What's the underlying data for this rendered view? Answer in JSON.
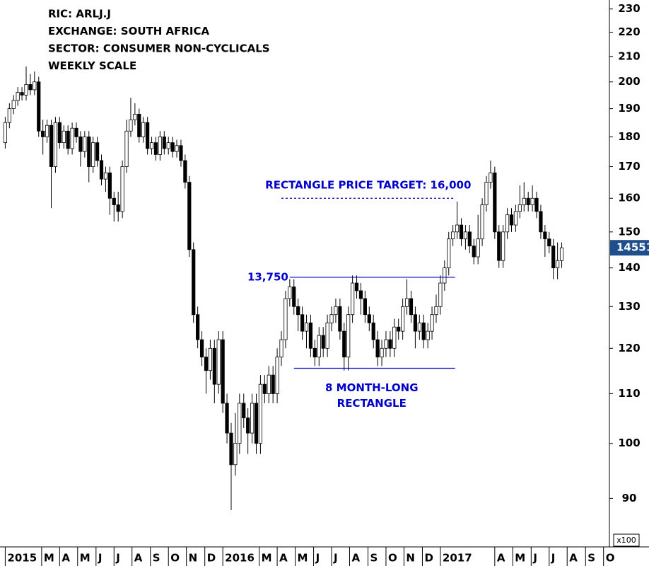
{
  "chart_data": {
    "type": "candlestick",
    "title_lines": [
      "RIC: ARLJ.J",
      "EXCHANGE: SOUTH AFRICA",
      "SECTOR: CONSUMER NON-CYCLICALS",
      "WEEKLY SCALE"
    ],
    "log_scale": true,
    "up_color": "#ffffff",
    "down_color": "#000000",
    "annotation_color": "#0000cc",
    "ylim": [
      82,
      234
    ],
    "yticks": [
      90,
      100,
      110,
      120,
      130,
      140,
      150,
      160,
      170,
      180,
      190,
      200,
      210,
      220,
      230
    ],
    "xlim": [
      -1.25,
      144.4
    ],
    "xticks": [
      {
        "value": 0,
        "label": "2015"
      },
      {
        "value": 8.7,
        "label": "M"
      },
      {
        "value": 13,
        "label": "A"
      },
      {
        "value": 17.3,
        "label": "M"
      },
      {
        "value": 21.7,
        "label": "J"
      },
      {
        "value": 26,
        "label": "J"
      },
      {
        "value": 30.3,
        "label": "A"
      },
      {
        "value": 34.7,
        "label": "S"
      },
      {
        "value": 39,
        "label": "O"
      },
      {
        "value": 43.3,
        "label": "N"
      },
      {
        "value": 47.7,
        "label": "D"
      },
      {
        "value": 52,
        "label": "2016"
      },
      {
        "value": 60.7,
        "label": "M"
      },
      {
        "value": 65,
        "label": "A"
      },
      {
        "value": 69.3,
        "label": "M"
      },
      {
        "value": 73.7,
        "label": "J"
      },
      {
        "value": 78,
        "label": "J"
      },
      {
        "value": 82.3,
        "label": "A"
      },
      {
        "value": 86.7,
        "label": "S"
      },
      {
        "value": 91,
        "label": "O"
      },
      {
        "value": 95.3,
        "label": "N"
      },
      {
        "value": 99.7,
        "label": "D"
      },
      {
        "value": 104,
        "label": "2017"
      },
      {
        "value": 117,
        "label": "A"
      },
      {
        "value": 121.3,
        "label": "M"
      },
      {
        "value": 125.7,
        "label": "J"
      },
      {
        "value": 130,
        "label": "J"
      },
      {
        "value": 134.3,
        "label": "A"
      },
      {
        "value": 138.7,
        "label": "S"
      },
      {
        "value": 143,
        "label": "O"
      }
    ],
    "open": [
      178,
      185,
      190,
      193,
      196,
      195,
      199,
      197,
      200,
      182,
      180,
      184,
      170,
      185,
      178,
      182,
      176,
      183,
      180,
      175,
      180,
      170,
      178,
      172,
      166,
      168,
      160,
      158,
      156,
      170,
      182,
      186,
      188,
      180,
      185,
      176,
      178,
      174,
      180,
      176,
      178,
      175,
      177,
      172,
      165,
      145,
      128,
      122,
      118,
      115,
      120,
      112,
      122,
      108,
      102,
      96,
      100,
      108,
      105,
      102,
      108,
      100,
      112,
      110,
      114,
      110,
      118,
      122,
      132,
      135,
      130,
      128,
      124,
      126,
      120,
      118,
      123,
      120,
      126,
      128,
      130,
      124,
      118,
      128,
      136,
      134,
      132,
      128,
      126,
      122,
      118,
      120,
      122,
      120,
      125,
      124,
      130,
      132,
      128,
      124,
      126,
      122,
      124,
      128,
      130,
      136,
      140,
      148,
      150,
      152,
      148,
      150,
      146,
      143,
      148,
      158,
      165,
      168,
      150,
      142,
      150,
      155,
      152,
      156,
      158,
      160,
      158,
      160,
      156,
      150,
      148,
      146,
      140,
      142
    ],
    "high": [
      187,
      192,
      195,
      198,
      198,
      206,
      203,
      204,
      202,
      186,
      186,
      186,
      187,
      187,
      184,
      184,
      185,
      185,
      182,
      182,
      182,
      180,
      180,
      174,
      170,
      170,
      162,
      162,
      172,
      186,
      194,
      192,
      190,
      187,
      187,
      180,
      180,
      182,
      182,
      180,
      180,
      179,
      179,
      174,
      167,
      147,
      130,
      124,
      120,
      122,
      122,
      124,
      124,
      110,
      104,
      106,
      110,
      110,
      107,
      110,
      110,
      114,
      114,
      116,
      116,
      120,
      124,
      134,
      137,
      137,
      132,
      130,
      128,
      128,
      122,
      125,
      125,
      128,
      130,
      132,
      132,
      126,
      130,
      138,
      138,
      136,
      134,
      130,
      128,
      124,
      122,
      124,
      124,
      127,
      127,
      132,
      137,
      134,
      130,
      128,
      128,
      126,
      130,
      133,
      138,
      142,
      150,
      152,
      159,
      154,
      152,
      152,
      148,
      155,
      160,
      167,
      172,
      170,
      152,
      152,
      157,
      157,
      158,
      164,
      165,
      162,
      164,
      162,
      158,
      152,
      150,
      148,
      147,
      147
    ],
    "low": [
      176,
      183,
      188,
      191,
      193,
      193,
      195,
      195,
      180,
      174,
      178,
      157,
      168,
      176,
      176,
      174,
      174,
      178,
      170,
      173,
      165,
      168,
      170,
      164,
      162,
      155,
      153,
      153,
      154,
      168,
      180,
      184,
      178,
      178,
      174,
      174,
      172,
      172,
      174,
      174,
      173,
      173,
      170,
      163,
      143,
      126,
      120,
      116,
      110,
      113,
      108,
      110,
      106,
      100,
      88,
      94,
      98,
      103,
      98,
      100,
      98,
      98,
      108,
      108,
      108,
      108,
      116,
      120,
      130,
      128,
      124,
      122,
      120,
      118,
      116,
      116,
      118,
      118,
      124,
      126,
      122,
      115,
      115,
      126,
      132,
      128,
      126,
      124,
      120,
      116,
      116,
      118,
      118,
      118,
      122,
      122,
      128,
      126,
      120,
      122,
      120,
      120,
      122,
      126,
      128,
      134,
      138,
      146,
      148,
      146,
      145,
      144,
      141,
      141,
      146,
      156,
      163,
      148,
      140,
      140,
      148,
      150,
      150,
      154,
      156,
      156,
      156,
      154,
      148,
      143,
      144,
      137,
      137,
      140
    ],
    "close": [
      185,
      190,
      193,
      196,
      195,
      199,
      197,
      200,
      182,
      180,
      184,
      170,
      185,
      178,
      182,
      176,
      183,
      180,
      175,
      180,
      170,
      178,
      172,
      166,
      168,
      160,
      158,
      156,
      170,
      182,
      186,
      188,
      180,
      185,
      176,
      178,
      174,
      180,
      176,
      178,
      175,
      177,
      172,
      165,
      145,
      128,
      122,
      118,
      115,
      120,
      112,
      122,
      108,
      102,
      96,
      100,
      108,
      105,
      102,
      108,
      100,
      112,
      110,
      114,
      110,
      118,
      122,
      132,
      135,
      130,
      128,
      124,
      126,
      120,
      118,
      123,
      120,
      126,
      128,
      130,
      124,
      118,
      128,
      136,
      134,
      132,
      128,
      126,
      122,
      118,
      120,
      122,
      120,
      125,
      124,
      130,
      132,
      128,
      124,
      126,
      122,
      124,
      128,
      130,
      136,
      140,
      148,
      150,
      152,
      148,
      150,
      146,
      143,
      148,
      158,
      165,
      168,
      150,
      142,
      150,
      155,
      152,
      156,
      158,
      160,
      158,
      160,
      156,
      150,
      148,
      146,
      140,
      142,
      145.51
    ],
    "levels": [
      {
        "value": 160,
        "label": "RECTANGLE PRICE TARGET: 16,000",
        "from": 66,
        "to": 107.5,
        "style": "dotted"
      },
      {
        "value": 137.5,
        "label": "13,750",
        "from": 68,
        "to": 107.5,
        "style": "solid"
      },
      {
        "value": 115.5,
        "from": 69,
        "to": 107.5,
        "style": "solid"
      }
    ],
    "pattern_label": [
      "8 MONTH-LONG",
      "RECTANGLE"
    ],
    "last_price": {
      "value": 145.51,
      "label": "14551"
    },
    "units_note": "x100"
  }
}
